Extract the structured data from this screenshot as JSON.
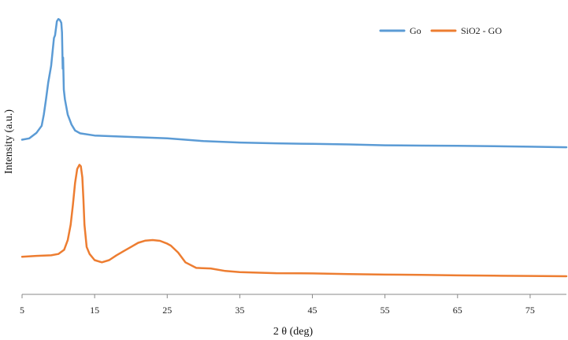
{
  "chart_data": {
    "type": "line",
    "xlabel": "2 θ (deg)",
    "ylabel": "Intensity (a.u.)",
    "xlim": [
      5,
      80
    ],
    "ylim": [
      0,
      100
    ],
    "x_ticks": [
      5,
      15,
      25,
      35,
      45,
      55,
      65,
      75
    ],
    "grid": false,
    "y_tick_labels": false,
    "legend_position": "top-right",
    "series": [
      {
        "name": "Go",
        "color": "#5b9bd5",
        "x": [
          5,
          6,
          7,
          7.7,
          8.0,
          8.3,
          8.6,
          9.0,
          9.2,
          9.4,
          9.55,
          9.8,
          10.0,
          10.2,
          10.4,
          10.5,
          10.6,
          10.65,
          10.75,
          10.9,
          11.3,
          11.8,
          12.3,
          13,
          15,
          20,
          25,
          30,
          35,
          40,
          45,
          50,
          55,
          60,
          65,
          70,
          75,
          80
        ],
        "y": [
          55.5,
          56,
          58,
          60.5,
          64.5,
          70,
          76,
          82,
          87,
          92,
          93,
          98,
          98.8,
          98.5,
          97.5,
          94,
          81,
          85,
          73.5,
          70,
          64.5,
          61,
          58.8,
          57.8,
          57,
          56.5,
          56,
          55,
          54.5,
          54.2,
          54,
          53.8,
          53.5,
          53.4,
          53.3,
          53.2,
          53.0,
          52.8
        ]
      },
      {
        "name": "SiO2 - GO",
        "color": "#ed7d31",
        "x": [
          5,
          7,
          9,
          10,
          10.8,
          11.3,
          11.7,
          12.0,
          12.3,
          12.6,
          12.9,
          13.1,
          13.3,
          13.45,
          13.6,
          13.9,
          14.3,
          15,
          16,
          17,
          18,
          19,
          20,
          21,
          22,
          23,
          24,
          25,
          25.5,
          26.5,
          27.5,
          29,
          31,
          33,
          35,
          40,
          45,
          50,
          55,
          60,
          65,
          70,
          75,
          80
        ],
        "y": [
          13.5,
          13.8,
          14,
          14.5,
          16,
          19.5,
          25,
          32,
          40,
          45,
          46.5,
          46,
          42,
          34,
          25,
          17,
          14.5,
          12.3,
          11.5,
          12.3,
          14,
          15.5,
          17,
          18.5,
          19.3,
          19.5,
          19.2,
          18.2,
          17.5,
          15,
          11.5,
          9.5,
          9.3,
          8.4,
          8.0,
          7.6,
          7.5,
          7.3,
          7.1,
          7.0,
          6.8,
          6.7,
          6.6,
          6.5
        ]
      }
    ]
  }
}
